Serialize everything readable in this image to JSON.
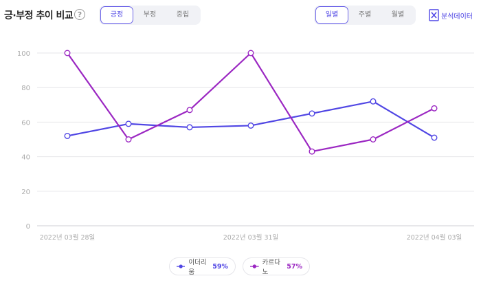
{
  "header": {
    "title": "긍·부정 추이 비교",
    "help_icon": "question-circle-icon"
  },
  "sentiment_tabs": [
    {
      "label": "긍정",
      "active": true
    },
    {
      "label": "부정",
      "active": false
    },
    {
      "label": "중립",
      "active": false
    }
  ],
  "period_tabs": [
    {
      "label": "일별",
      "active": true
    },
    {
      "label": "주별",
      "active": false
    },
    {
      "label": "월별",
      "active": false
    }
  ],
  "analysis_link": {
    "label": "분석데이터",
    "icon": "excel-icon"
  },
  "colors": {
    "accent": "#4f46e5",
    "series_a": "#5046e4",
    "series_b": "#9b27c2"
  },
  "chart_data": {
    "type": "line",
    "x": [
      "2022-03-28",
      "2022-03-29",
      "2022-03-30",
      "2022-03-31",
      "2022-04-01",
      "2022-04-02",
      "2022-04-03"
    ],
    "x_tick_labels": [
      "2022년 03월 28일",
      "2022년 03월 31일",
      "2022년 04월 03일"
    ],
    "x_tick_index": [
      0,
      3,
      6
    ],
    "ylim": [
      0,
      100
    ],
    "y_ticks": [
      0,
      20,
      40,
      60,
      80,
      100
    ],
    "grid": true,
    "legend_position": "bottom-center",
    "series": [
      {
        "name": "이더리움",
        "percent": "59%",
        "color": "#5046e4",
        "values": [
          52,
          59,
          57,
          58,
          65,
          72,
          51
        ]
      },
      {
        "name": "카르다노",
        "percent": "57%",
        "color": "#9b27c2",
        "values": [
          100,
          50,
          67,
          100,
          43,
          50,
          68
        ]
      }
    ]
  }
}
